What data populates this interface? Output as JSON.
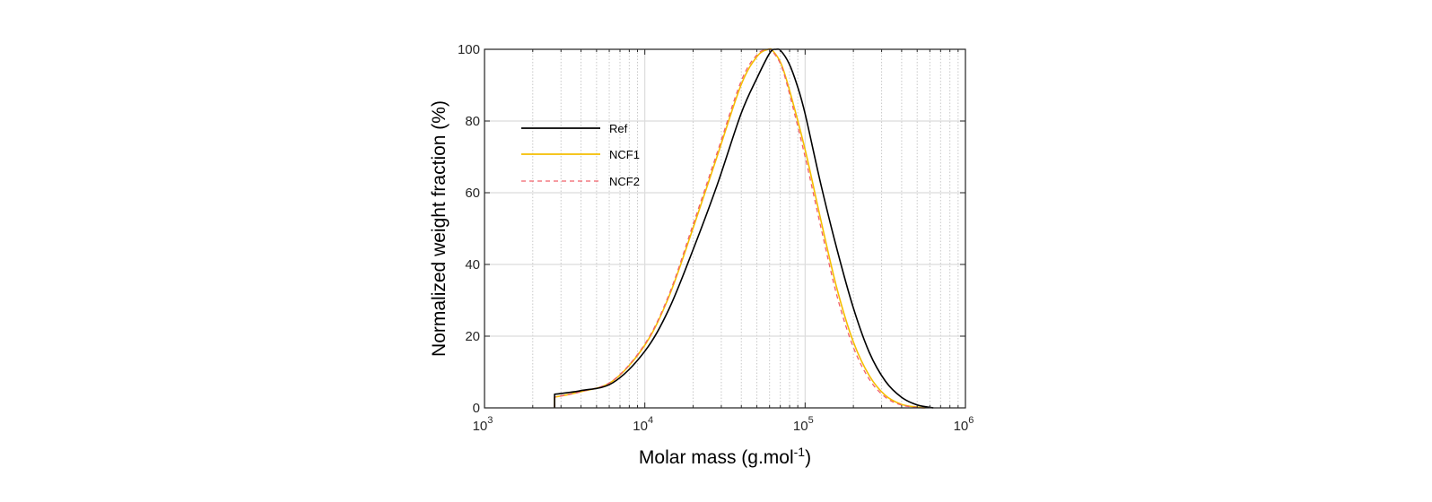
{
  "chart_data": {
    "type": "line",
    "title": "",
    "xlabel": "Molar mass (g.mol",
    "xlabel_superscript": "-1",
    "xlabel_suffix": ")",
    "ylabel": "Normalized weight fraction (%)",
    "xscale": "log",
    "xlim": [
      1000,
      1000000
    ],
    "ylim": [
      0,
      100
    ],
    "x_ticks": [
      {
        "base": "10",
        "exp": "3"
      },
      {
        "base": "10",
        "exp": "4"
      },
      {
        "base": "10",
        "exp": "5"
      },
      {
        "base": "10",
        "exp": "6"
      }
    ],
    "y_ticks": [
      "0",
      "20",
      "40",
      "60",
      "80",
      "100"
    ],
    "grid": {
      "major": true,
      "minor_x": true
    },
    "legend": {
      "placement": "top-left",
      "entries": [
        "Ref",
        "NCF1",
        "NCF2"
      ]
    },
    "series": [
      {
        "name": "Ref",
        "color": "#000000",
        "style": "solid",
        "x_log10": [
          3.437,
          3.437,
          3.6,
          3.8,
          4.0,
          4.15,
          4.3,
          4.45,
          4.6,
          4.7,
          4.78,
          4.82,
          4.85,
          4.9,
          4.95,
          5.0,
          5.1,
          5.2,
          5.3,
          5.4,
          5.5,
          5.6,
          5.7,
          5.8
        ],
        "y": [
          0,
          3.8,
          4.8,
          7.0,
          15.8,
          27.5,
          44,
          62,
          82,
          92,
          99,
          100,
          99.5,
          96,
          90,
          82,
          62,
          44,
          28,
          15.5,
          7.5,
          3.0,
          0.8,
          0
        ]
      },
      {
        "name": "NCF1",
        "color": "#F5BE00",
        "style": "solid",
        "x_log10": [
          3.437,
          3.437,
          3.6,
          3.8,
          4.0,
          4.15,
          4.3,
          4.45,
          4.6,
          4.7,
          4.77,
          4.8,
          4.85,
          4.9,
          5.0,
          5.1,
          5.2,
          5.3,
          5.4,
          5.5,
          5.6,
          5.7,
          5.75
        ],
        "y": [
          0,
          3.0,
          4.5,
          7.5,
          17.5,
          31,
          50,
          70,
          90,
          98,
          100,
          99.5,
          96,
          89,
          72,
          52,
          33,
          18.5,
          9,
          3.5,
          1.0,
          0.2,
          0
        ]
      },
      {
        "name": "NCF2",
        "color": "#F0606A",
        "style": "dashed",
        "x_log10": [
          3.437,
          3.437,
          3.6,
          3.8,
          4.0,
          4.15,
          4.3,
          4.45,
          4.6,
          4.7,
          4.77,
          4.8,
          4.85,
          4.9,
          5.0,
          5.1,
          5.2,
          5.3,
          5.4,
          5.5,
          5.6,
          5.7,
          5.74
        ],
        "y": [
          0,
          3.0,
          4.5,
          7.6,
          17.8,
          31.5,
          51,
          71,
          91,
          98.5,
          100,
          99.2,
          95.5,
          88,
          70,
          50,
          31,
          17,
          8,
          3.0,
          0.8,
          0.1,
          0
        ]
      }
    ]
  }
}
